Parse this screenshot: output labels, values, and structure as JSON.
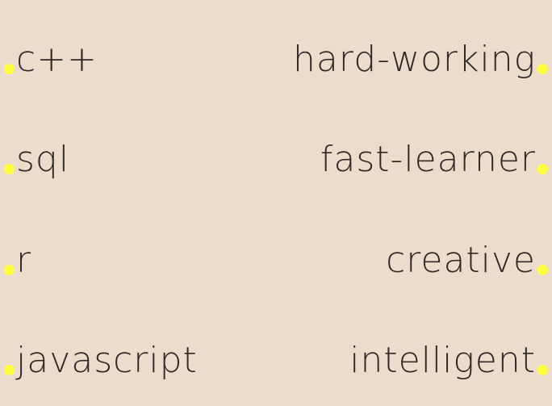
{
  "skills": [
    {
      "label": "c++"
    },
    {
      "label": "sql"
    },
    {
      "label": "r"
    },
    {
      "label": "javascript"
    }
  ],
  "traits": [
    {
      "label": "hard-working"
    },
    {
      "label": "fast-learner"
    },
    {
      "label": "creative"
    },
    {
      "label": "intelligent"
    }
  ],
  "colors": {
    "background": "#ecdccc",
    "text": "#2f2a27",
    "dot": "#ffff3f"
  }
}
